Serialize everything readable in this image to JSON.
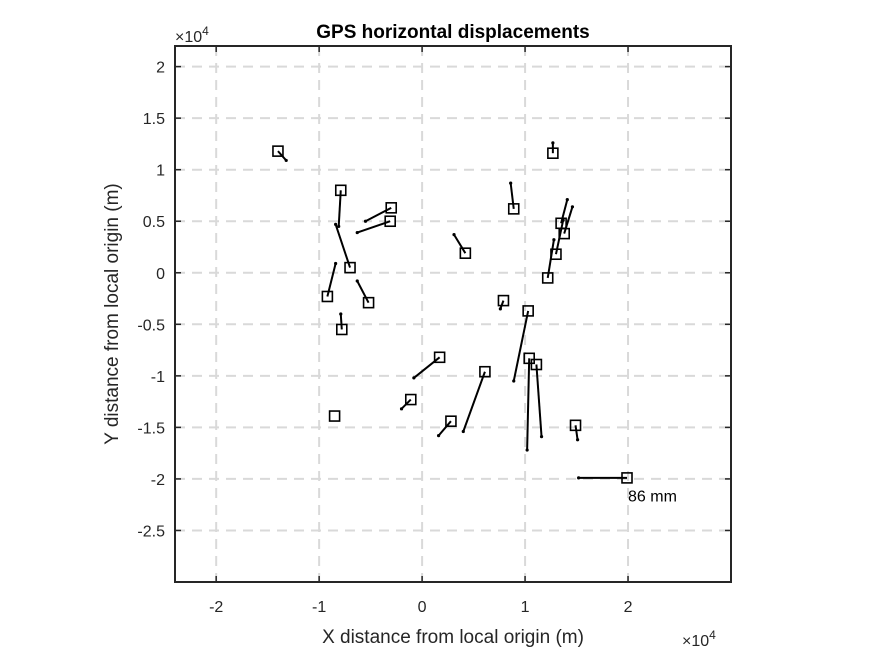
{
  "chart_data": {
    "type": "scatter",
    "title": "GPS horizontal displacements",
    "xlabel": "X distance from local origin (m)",
    "ylabel": "Y distance from local origin (m)",
    "exponent_label": "×10",
    "exponent_power": "4",
    "xlim": [
      -24000,
      30000
    ],
    "ylim": [
      -30000,
      22000
    ],
    "xticks": [
      -20000,
      -10000,
      0,
      10000,
      20000
    ],
    "xtick_labels": [
      "-2",
      "-1",
      "0",
      "1",
      "2"
    ],
    "yticks": [
      -25000,
      -20000,
      -15000,
      -10000,
      -5000,
      0,
      5000,
      10000,
      15000,
      20000
    ],
    "ytick_labels": [
      "-2.5",
      "-2",
      "-1.5",
      "-1",
      "-0.5",
      "0",
      "0.5",
      "1",
      "1.5",
      "2"
    ],
    "grid": true,
    "stations": [
      {
        "x": -14000,
        "y": 11800,
        "tx": -13200,
        "ty": 10900
      },
      {
        "x": -7900,
        "y": 8000,
        "tx": -8100,
        "ty": 4500
      },
      {
        "x": -3000,
        "y": 6300,
        "tx": -5500,
        "ty": 5000
      },
      {
        "x": -3100,
        "y": 5000,
        "tx": -6300,
        "ty": 3900
      },
      {
        "x": -7000,
        "y": 500,
        "tx": -8400,
        "ty": 4700
      },
      {
        "x": -9200,
        "y": -2300,
        "tx": -8400,
        "ty": 900
      },
      {
        "x": -5200,
        "y": -2900,
        "tx": -6300,
        "ty": -800
      },
      {
        "x": -7800,
        "y": -5500,
        "tx": -7900,
        "ty": -4000
      },
      {
        "x": -8500,
        "y": -13900,
        "tx": -8500,
        "ty": -13900
      },
      {
        "x": 1700,
        "y": -8200,
        "tx": -800,
        "ty": -10200
      },
      {
        "x": -1100,
        "y": -12300,
        "tx": -2000,
        "ty": -13200
      },
      {
        "x": 2800,
        "y": -14400,
        "tx": 1600,
        "ty": -15800
      },
      {
        "x": 6100,
        "y": -9600,
        "tx": 4000,
        "ty": -15400
      },
      {
        "x": 4200,
        "y": 1900,
        "tx": 3100,
        "ty": 3700
      },
      {
        "x": 7900,
        "y": -2700,
        "tx": 7600,
        "ty": -3500
      },
      {
        "x": 10300,
        "y": -3700,
        "tx": 8900,
        "ty": -10500
      },
      {
        "x": 8900,
        "y": 6200,
        "tx": 8600,
        "ty": 8700
      },
      {
        "x": 10400,
        "y": -8300,
        "tx": 10200,
        "ty": -17200
      },
      {
        "x": 11100,
        "y": -8900,
        "tx": 11600,
        "ty": -15900
      },
      {
        "x": 12200,
        "y": -500,
        "tx": 12800,
        "ty": 3200
      },
      {
        "x": 12700,
        "y": 11600,
        "tx": 12700,
        "ty": 12600
      },
      {
        "x": 13500,
        "y": 4800,
        "tx": 14100,
        "ty": 7100
      },
      {
        "x": 13800,
        "y": 3800,
        "tx": 14600,
        "ty": 6400
      },
      {
        "x": 13000,
        "y": 1800,
        "tx": 13700,
        "ty": 5100
      },
      {
        "x": 14900,
        "y": -14800,
        "tx": 15100,
        "ty": -16200
      },
      {
        "x": 19900,
        "y": -19900,
        "tx": 15200,
        "ty": -19900
      }
    ],
    "annotations": [
      {
        "text": "86 mm",
        "x": 20000,
        "y": -22200
      }
    ]
  }
}
